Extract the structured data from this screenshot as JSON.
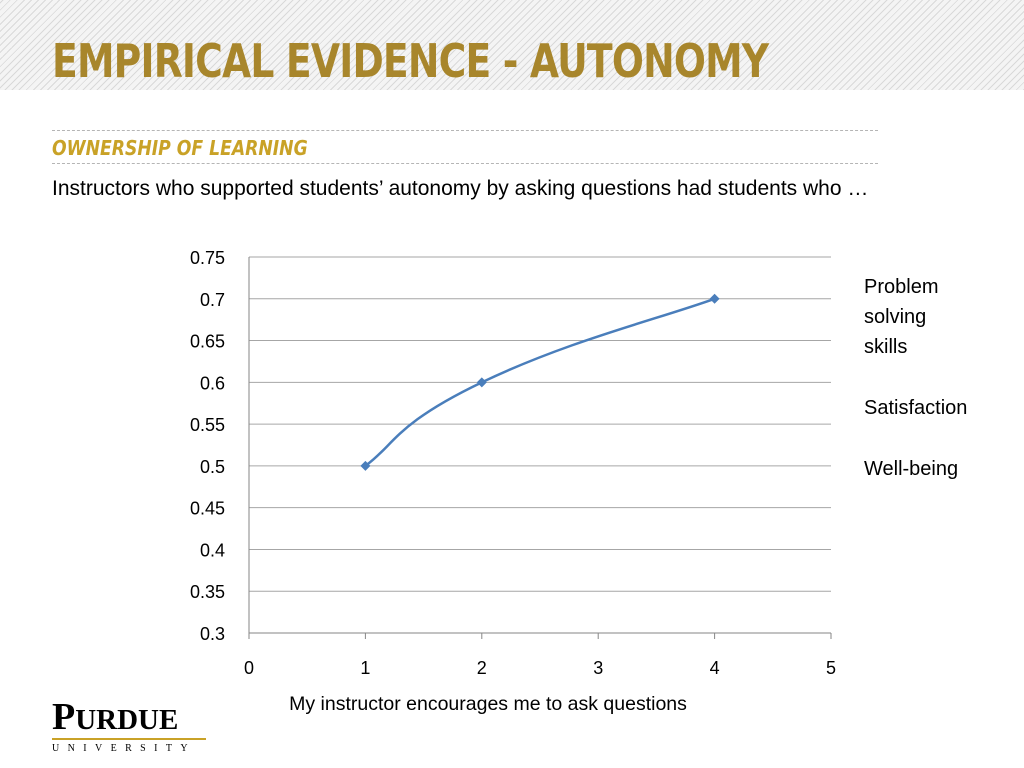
{
  "slide": {
    "title": "EMPIRICAL EVIDENCE - AUTONOMY",
    "subtitle": "OWNERSHIP OF LEARNING",
    "intro": "Instructors who supported students’ autonomy by asking questions had students who …",
    "legend_items": [
      "Problem solving skills",
      "Satisfaction",
      "Well-being"
    ],
    "logo": {
      "word_first": "P",
      "word_rest": "URDUE",
      "sub": "UNIVERSITY"
    }
  },
  "colors": {
    "title": "#a8862c",
    "subtitle": "#c9a227",
    "series": "#4a7ebb",
    "grid": "#a6a6a6"
  },
  "chart_data": {
    "type": "line",
    "x": [
      1,
      2,
      4
    ],
    "series": [
      {
        "values": [
          0.5,
          0.6,
          0.7
        ]
      }
    ],
    "xlabel": "My instructor encourages me to ask questions",
    "ylabel": "",
    "xlim": [
      0,
      5
    ],
    "ylim": [
      0.3,
      0.75
    ],
    "x_ticks": [
      "0",
      "1",
      "2",
      "3",
      "4",
      "5"
    ],
    "y_ticks": [
      "0.75",
      "0.7",
      "0.65",
      "0.6",
      "0.55",
      "0.5",
      "0.45",
      "0.4",
      "0.35",
      "0.3"
    ],
    "grid": true,
    "marker": "diamond",
    "smooth": true
  }
}
